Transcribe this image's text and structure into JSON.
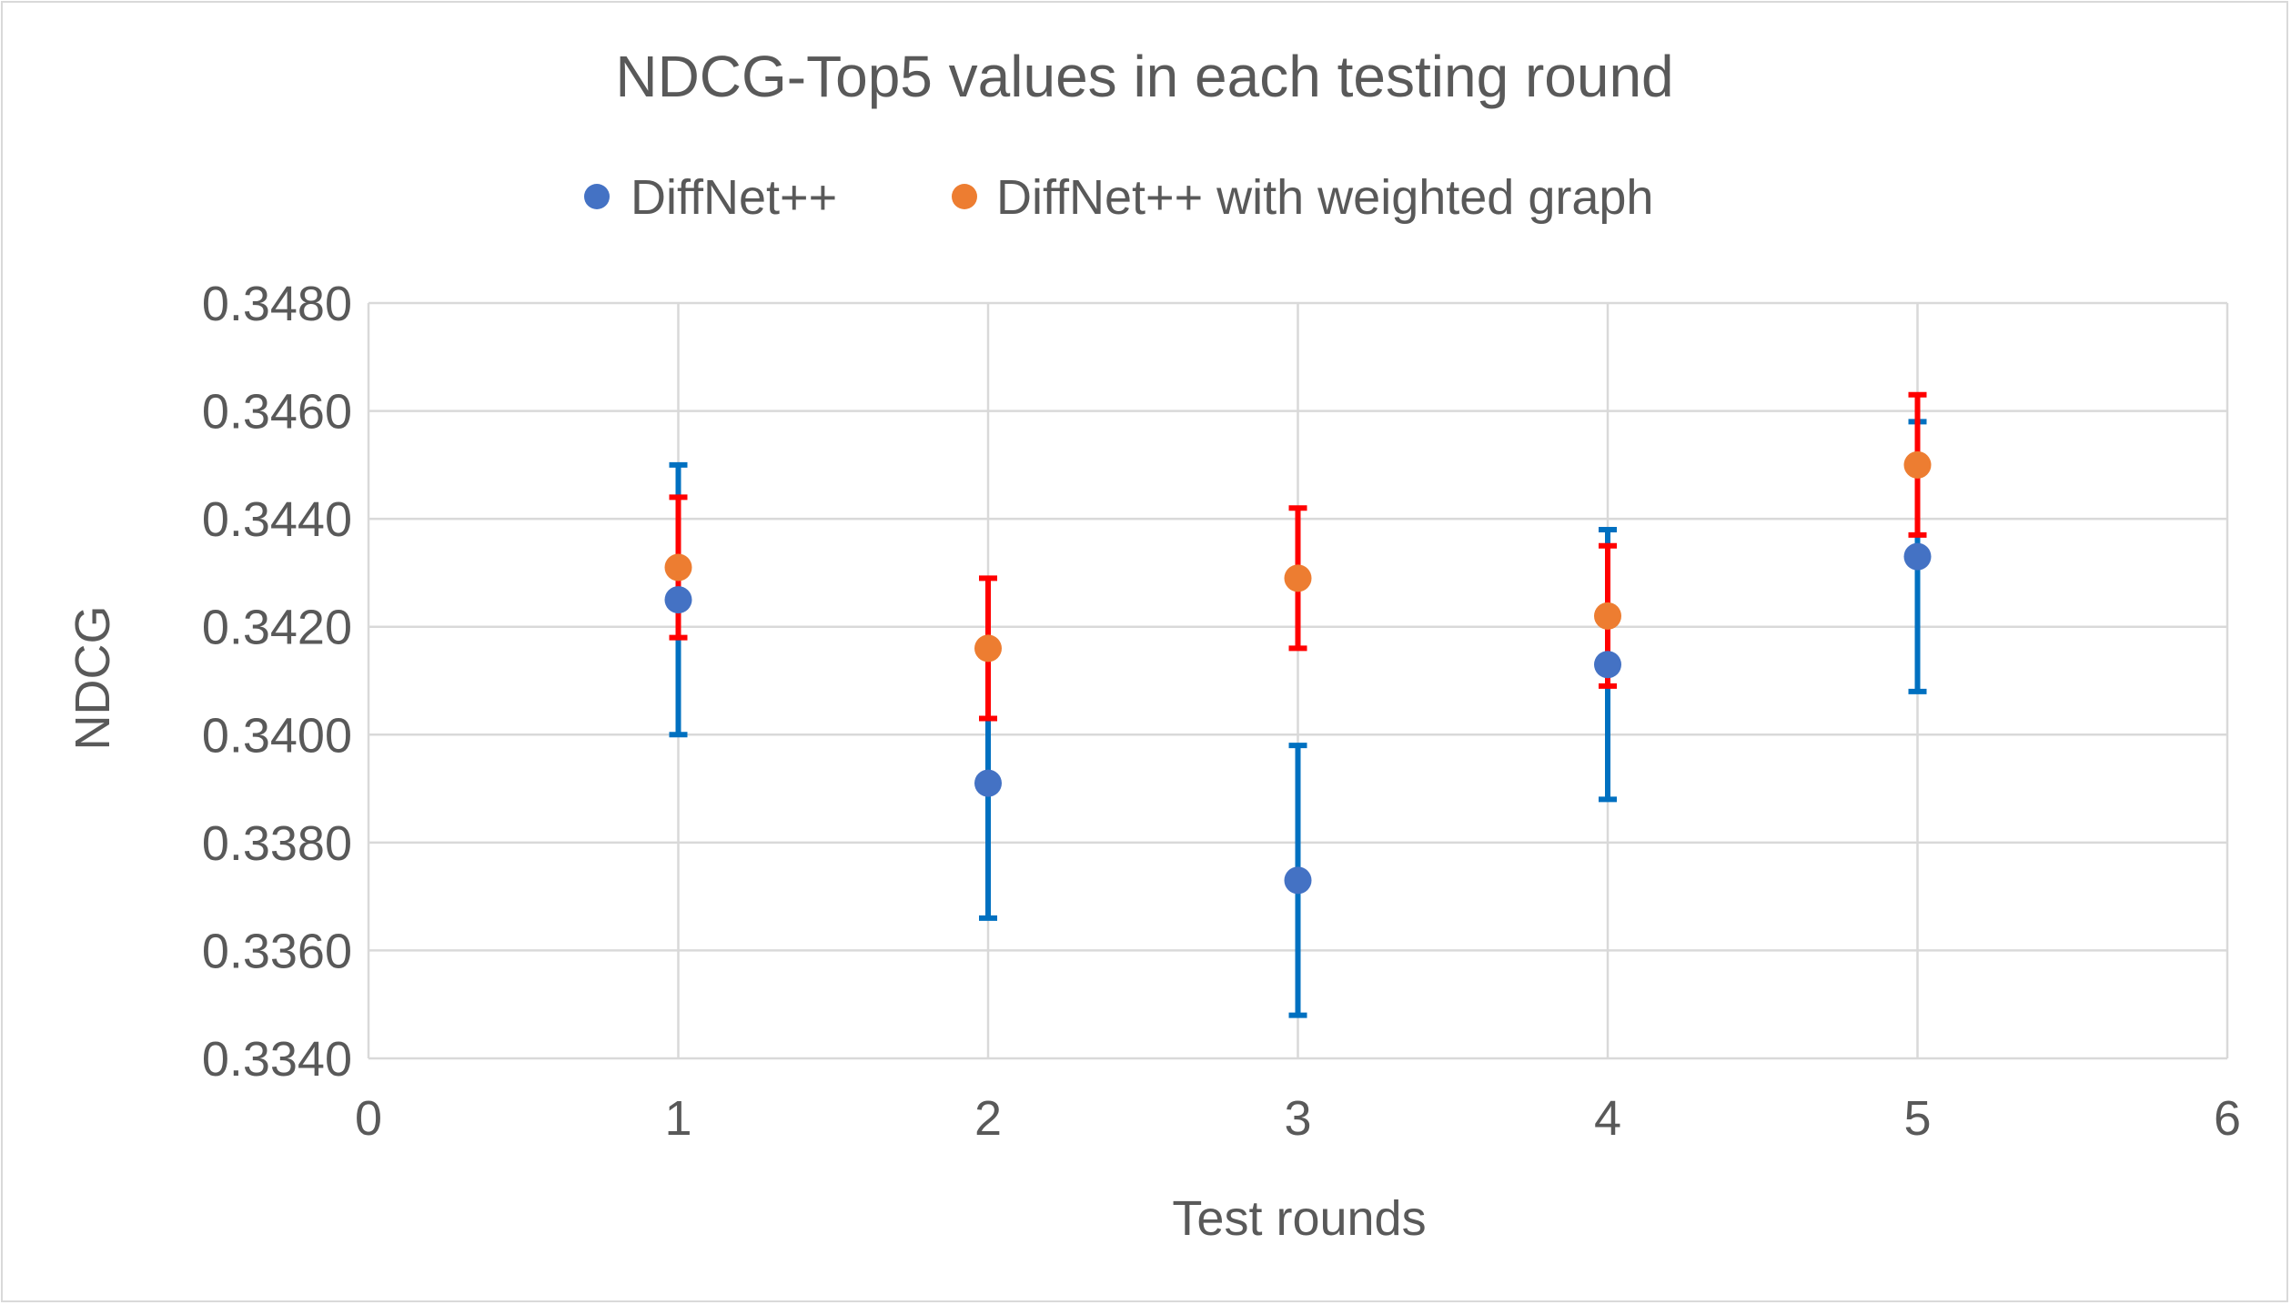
{
  "chart_data": {
    "type": "scatter",
    "title": "NDCG-Top5 values in each testing round",
    "xlabel": "Test rounds",
    "ylabel": "NDCG",
    "xlim": [
      0,
      6
    ],
    "ylim": [
      0.334,
      0.348
    ],
    "x_ticks": [
      "0",
      "1",
      "2",
      "3",
      "4",
      "5",
      "6"
    ],
    "y_ticks": [
      "0.3340",
      "0.3360",
      "0.3380",
      "0.3400",
      "0.3420",
      "0.3440",
      "0.3460",
      "0.3480"
    ],
    "grid": true,
    "legend_position": "top",
    "series": [
      {
        "name": "DiffNet++",
        "marker_color": "#4472C4",
        "errorbar_color": "#0070C0",
        "x": [
          1,
          2,
          3,
          4,
          5
        ],
        "y": [
          0.3425,
          0.3391,
          0.3373,
          0.3413,
          0.3433
        ],
        "error": [
          0.0025,
          0.0025,
          0.0025,
          0.0025,
          0.0025
        ]
      },
      {
        "name": "DiffNet++ with weighted graph",
        "marker_color": "#ED7D31",
        "errorbar_color": "#FF0000",
        "x": [
          1,
          2,
          3,
          4,
          5
        ],
        "y": [
          0.3431,
          0.3416,
          0.3429,
          0.3422,
          0.345
        ],
        "error": [
          0.0013,
          0.0013,
          0.0013,
          0.0013,
          0.0013
        ]
      }
    ]
  }
}
